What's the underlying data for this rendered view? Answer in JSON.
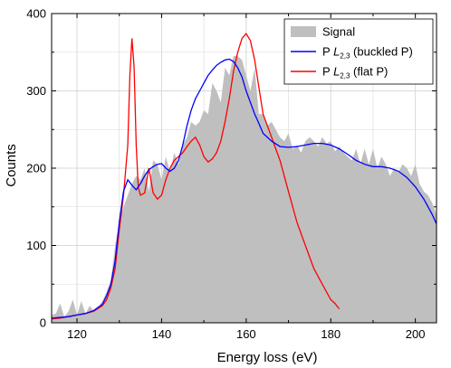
{
  "chart_data": {
    "type": "area",
    "xlabel": "Energy loss (eV)",
    "ylabel": "Counts",
    "xlim": [
      114,
      205
    ],
    "ylim": [
      0,
      400
    ],
    "x_ticks": [
      120,
      140,
      160,
      180,
      200
    ],
    "y_ticks": [
      0,
      100,
      200,
      300,
      400
    ],
    "grid": true,
    "legend_position": "top-right",
    "legend": [
      {
        "key": "signal",
        "prefix": "Signal",
        "italic": "",
        "sub": "",
        "suffix": ""
      },
      {
        "key": "buckled",
        "prefix": "P ",
        "italic": "L",
        "sub": "2,3",
        "suffix": " (buckled P)"
      },
      {
        "key": "flat",
        "prefix": "P ",
        "italic": "L",
        "sub": "2,3",
        "suffix": " (flat P)"
      }
    ],
    "colors": {
      "signal": "#bfbfbf",
      "buckled": "#0000ff",
      "flat": "#ff0000",
      "grid": "#d9d9d9"
    },
    "series": [
      {
        "key": "signal",
        "x": [
          114,
          115,
          116,
          117,
          118,
          119,
          120,
          121,
          122,
          123,
          124,
          125,
          126,
          127,
          128,
          129,
          130,
          131,
          132,
          133,
          134,
          135,
          136,
          137,
          138,
          139,
          140,
          141,
          142,
          143,
          144,
          145,
          146,
          147,
          148,
          149,
          150,
          151,
          152,
          153,
          154,
          155,
          156,
          157,
          158,
          159,
          160,
          161,
          162,
          163,
          164,
          165,
          166,
          167,
          168,
          169,
          170,
          171,
          172,
          173,
          174,
          175,
          176,
          177,
          178,
          179,
          180,
          181,
          182,
          183,
          184,
          185,
          186,
          187,
          188,
          189,
          190,
          191,
          192,
          193,
          194,
          195,
          196,
          197,
          198,
          199,
          200,
          201,
          202,
          203,
          204,
          205
        ],
        "y": [
          10,
          12,
          25,
          8,
          15,
          30,
          10,
          28,
          12,
          22,
          15,
          20,
          28,
          40,
          55,
          100,
          130,
          150,
          165,
          180,
          190,
          185,
          200,
          170,
          210,
          205,
          185,
          215,
          195,
          220,
          205,
          230,
          240,
          260,
          255,
          260,
          275,
          270,
          310,
          300,
          285,
          330,
          320,
          345,
          345,
          340,
          320,
          300,
          330,
          270,
          270,
          255,
          260,
          250,
          240,
          235,
          245,
          225,
          230,
          220,
          235,
          240,
          235,
          228,
          240,
          232,
          235,
          222,
          228,
          220,
          215,
          210,
          225,
          205,
          225,
          205,
          225,
          200,
          215,
          205,
          190,
          200,
          195,
          205,
          200,
          190,
          205,
          180,
          170,
          165,
          155,
          140
        ]
      },
      {
        "key": "buckled",
        "x": [
          114,
          116,
          118,
          120,
          122,
          124,
          126,
          127,
          128,
          129,
          130,
          131,
          132,
          133,
          134,
          135,
          136,
          137,
          138,
          139,
          140,
          141,
          142,
          143,
          144,
          145,
          146,
          147,
          148,
          149,
          150,
          151,
          152,
          153,
          154,
          155,
          156,
          157,
          158,
          159,
          160,
          161,
          162,
          163,
          164,
          166,
          168,
          170,
          172,
          174,
          176,
          178,
          180,
          182,
          184,
          186,
          188,
          190,
          192,
          194,
          196,
          198,
          200,
          202,
          204,
          205
        ],
        "y": [
          6,
          7,
          8,
          10,
          12,
          16,
          24,
          35,
          50,
          80,
          130,
          170,
          185,
          178,
          172,
          180,
          190,
          198,
          202,
          205,
          206,
          200,
          196,
          200,
          210,
          230,
          255,
          275,
          290,
          300,
          310,
          320,
          327,
          333,
          337,
          340,
          341,
          338,
          330,
          318,
          300,
          285,
          270,
          258,
          245,
          235,
          228,
          227,
          228,
          230,
          232,
          232,
          230,
          225,
          218,
          210,
          205,
          202,
          202,
          200,
          196,
          188,
          176,
          160,
          140,
          128
        ]
      },
      {
        "key": "flat",
        "x": [
          114,
          116,
          118,
          120,
          122,
          124,
          126,
          127,
          128,
          129,
          130,
          131,
          132,
          132.5,
          133,
          133.5,
          134,
          134.5,
          135,
          136,
          137,
          138,
          139,
          140,
          141,
          142,
          143,
          144,
          145,
          146,
          147,
          148,
          149,
          150,
          151,
          152,
          153,
          154,
          155,
          156,
          157,
          158,
          159,
          160,
          161,
          162,
          163,
          164,
          165,
          166,
          167,
          168,
          170,
          172,
          174,
          176,
          178,
          180,
          181,
          182
        ],
        "y": [
          5,
          6,
          8,
          10,
          12,
          15,
          22,
          30,
          45,
          70,
          120,
          165,
          230,
          320,
          368,
          330,
          230,
          175,
          165,
          168,
          200,
          168,
          160,
          165,
          185,
          200,
          210,
          215,
          220,
          228,
          235,
          240,
          230,
          215,
          208,
          212,
          220,
          235,
          260,
          290,
          325,
          350,
          368,
          374,
          365,
          340,
          305,
          270,
          255,
          240,
          225,
          210,
          170,
          130,
          100,
          70,
          50,
          30,
          25,
          18
        ]
      }
    ]
  }
}
